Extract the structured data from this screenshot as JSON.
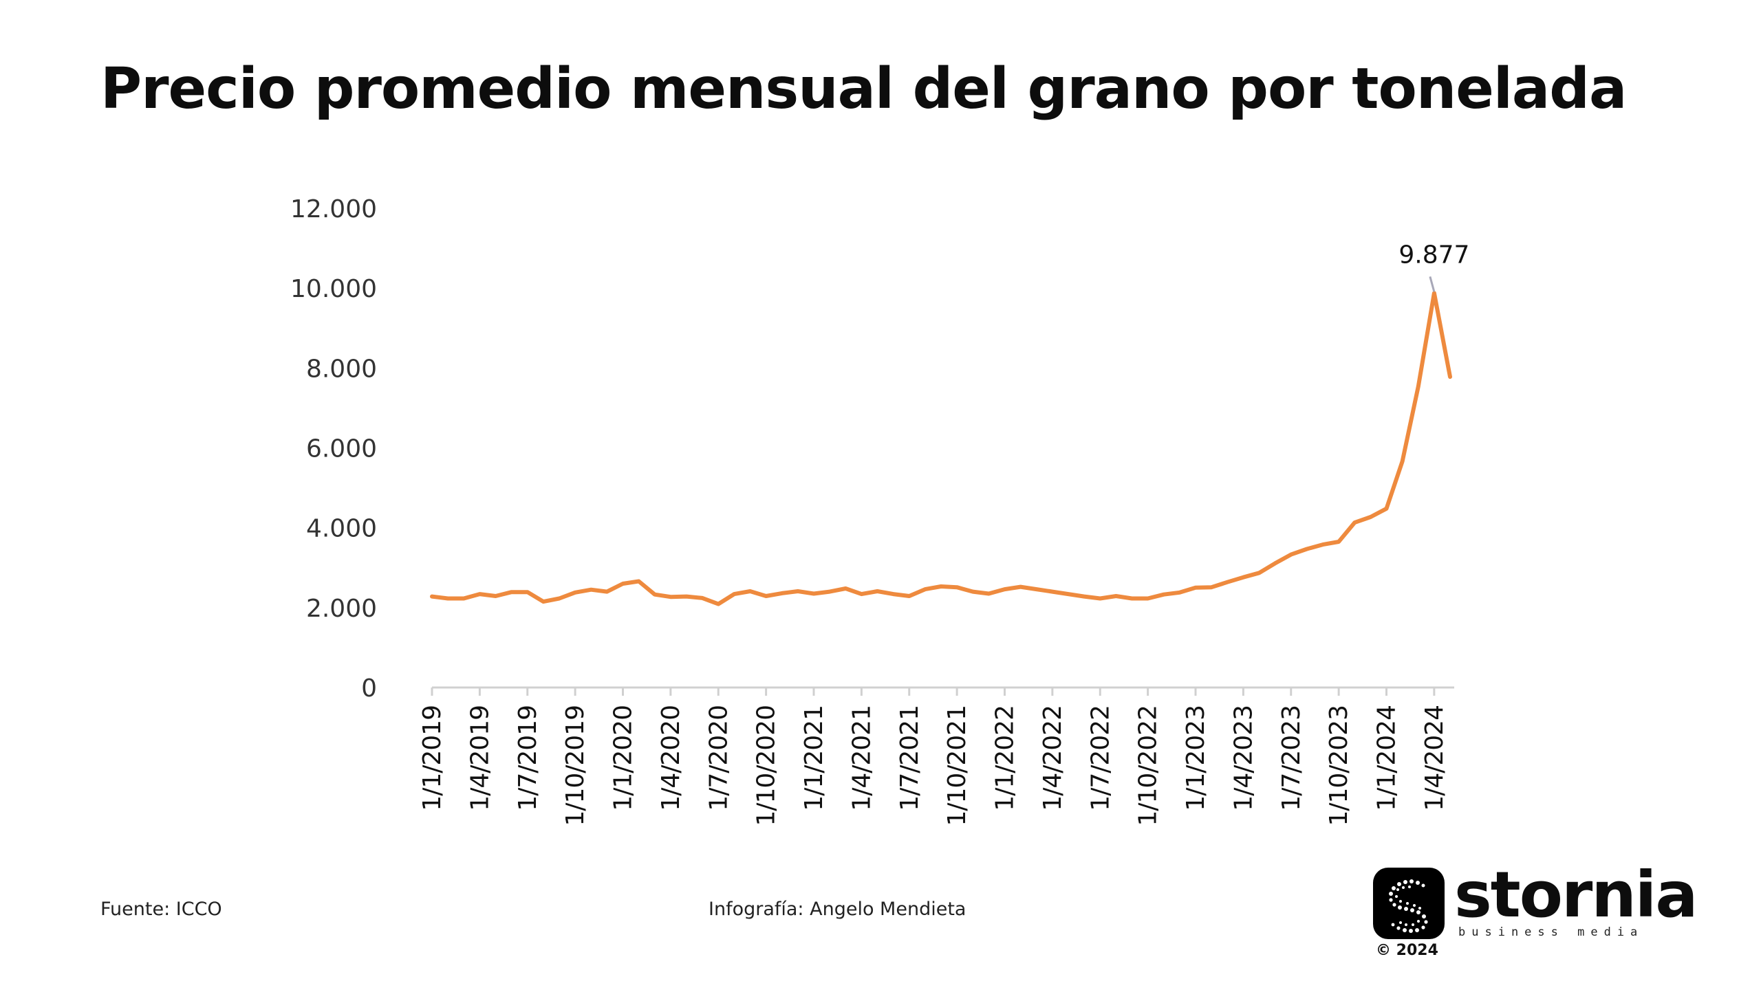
{
  "title": "Precio promedio mensual del grano por tonelada",
  "footer": {
    "source": "Fuente: ICCO",
    "credit": "Infografía: Angelo Mendieta"
  },
  "logo": {
    "name": "stornia",
    "tagline": "business media",
    "copyright": "© 2024"
  },
  "colors": {
    "series": "#ee8a3e",
    "annotation_line": "#a8a8b8",
    "axis": "#d0d0d0"
  },
  "chart_data": {
    "type": "line",
    "title": "Precio promedio mensual del grano por tonelada",
    "xlabel": "",
    "ylabel": "",
    "ylim": [
      0,
      12000
    ],
    "yticks": [
      0,
      2000,
      4000,
      6000,
      8000,
      10000,
      12000
    ],
    "ytick_labels": [
      "0",
      "2.000",
      "4.000",
      "6.000",
      "8.000",
      "10.000",
      "12.000"
    ],
    "xtick_labels": [
      "1/1/2019",
      "1/4/2019",
      "1/7/2019",
      "1/10/2019",
      "1/1/2020",
      "1/4/2020",
      "1/7/2020",
      "1/10/2020",
      "1/1/2021",
      "1/4/2021",
      "1/7/2021",
      "1/10/2021",
      "1/1/2022",
      "1/4/2022",
      "1/7/2022",
      "1/10/2022",
      "1/1/2023",
      "1/4/2023",
      "1/7/2023",
      "1/10/2023",
      "1/1/2024",
      "1/4/2024"
    ],
    "grid": false,
    "legend": "none",
    "x": [
      "2019-01",
      "2019-02",
      "2019-03",
      "2019-04",
      "2019-05",
      "2019-06",
      "2019-07",
      "2019-08",
      "2019-09",
      "2019-10",
      "2019-11",
      "2019-12",
      "2020-01",
      "2020-02",
      "2020-03",
      "2020-04",
      "2020-05",
      "2020-06",
      "2020-07",
      "2020-08",
      "2020-09",
      "2020-10",
      "2020-11",
      "2020-12",
      "2021-01",
      "2021-02",
      "2021-03",
      "2021-04",
      "2021-05",
      "2021-06",
      "2021-07",
      "2021-08",
      "2021-09",
      "2021-10",
      "2021-11",
      "2021-12",
      "2022-01",
      "2022-02",
      "2022-03",
      "2022-04",
      "2022-05",
      "2022-06",
      "2022-07",
      "2022-08",
      "2022-09",
      "2022-10",
      "2022-11",
      "2022-12",
      "2023-01",
      "2023-02",
      "2023-03",
      "2023-04",
      "2023-05",
      "2023-06",
      "2023-07",
      "2023-08",
      "2023-09",
      "2023-10",
      "2023-11",
      "2023-12",
      "2024-01",
      "2024-02",
      "2024-03",
      "2024-04",
      "2024-05"
    ],
    "series": [
      {
        "values": [
          2280,
          2230,
          2230,
          2340,
          2290,
          2390,
          2390,
          2150,
          2230,
          2380,
          2450,
          2400,
          2600,
          2660,
          2330,
          2270,
          2280,
          2240,
          2090,
          2340,
          2410,
          2290,
          2360,
          2410,
          2350,
          2400,
          2480,
          2340,
          2410,
          2340,
          2290,
          2460,
          2530,
          2510,
          2400,
          2350,
          2460,
          2520,
          2460,
          2400,
          2340,
          2280,
          2230,
          2290,
          2230,
          2230,
          2330,
          2380,
          2500,
          2510,
          2640,
          2760,
          2870,
          3110,
          3330,
          3470,
          3580,
          3650,
          4130,
          4270,
          4480,
          5660,
          7540,
          9877,
          7780
        ]
      }
    ],
    "annotations": [
      {
        "x": "2024-04",
        "value": 9877,
        "text": "9.877"
      }
    ]
  }
}
